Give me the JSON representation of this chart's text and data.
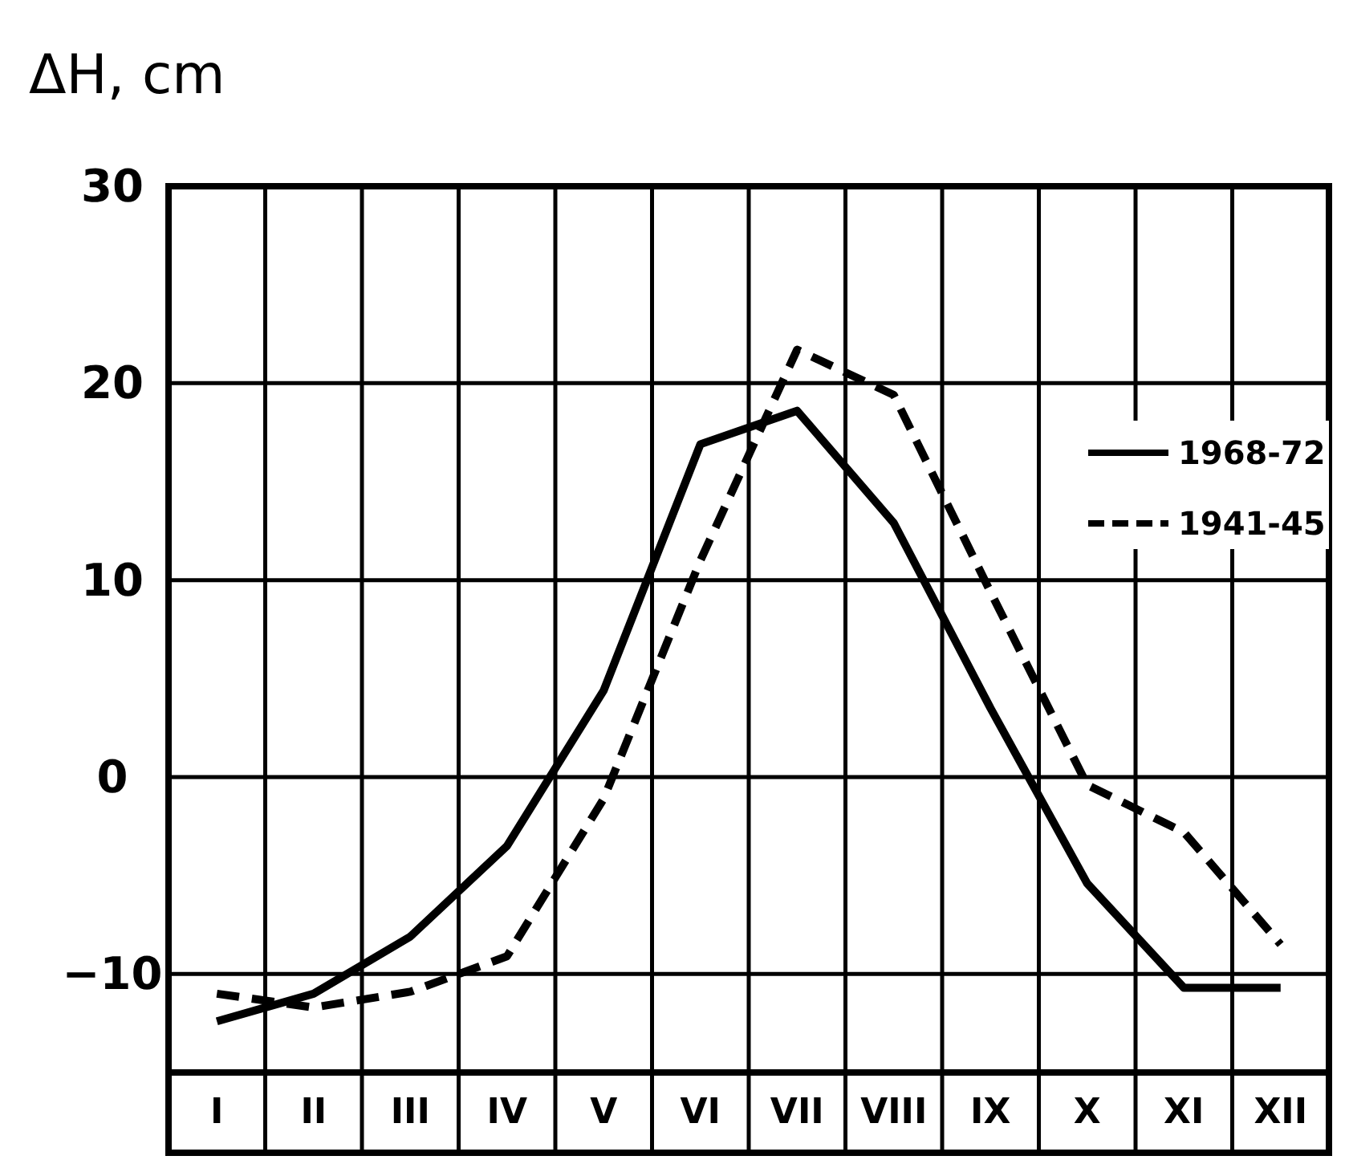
{
  "chart_data": {
    "type": "line",
    "ylabel": "ΔH, cm",
    "categories": [
      "I",
      "II",
      "III",
      "IV",
      "V",
      "VI",
      "VII",
      "VIII",
      "IX",
      "X",
      "XI",
      "XII"
    ],
    "series": [
      {
        "name": "1968-72",
        "color": "#000000",
        "line_style": "solid",
        "values": [
          -12.4,
          -11.0,
          -8.1,
          -3.5,
          4.4,
          16.9,
          18.6,
          12.9,
          3.5,
          -5.4,
          -10.7,
          -10.7
        ]
      },
      {
        "name": "1941-45",
        "color": "#000000",
        "line_style": "dashed",
        "values": [
          -11.0,
          -11.7,
          -10.9,
          -9.1,
          -1.1,
          11.0,
          21.7,
          19.4,
          9.4,
          -0.4,
          -2.8,
          -8.5
        ]
      }
    ],
    "ylim": [
      -15,
      30
    ],
    "yticks": [
      -10,
      0,
      10,
      20,
      30
    ],
    "grid": true,
    "legend": "top right"
  }
}
